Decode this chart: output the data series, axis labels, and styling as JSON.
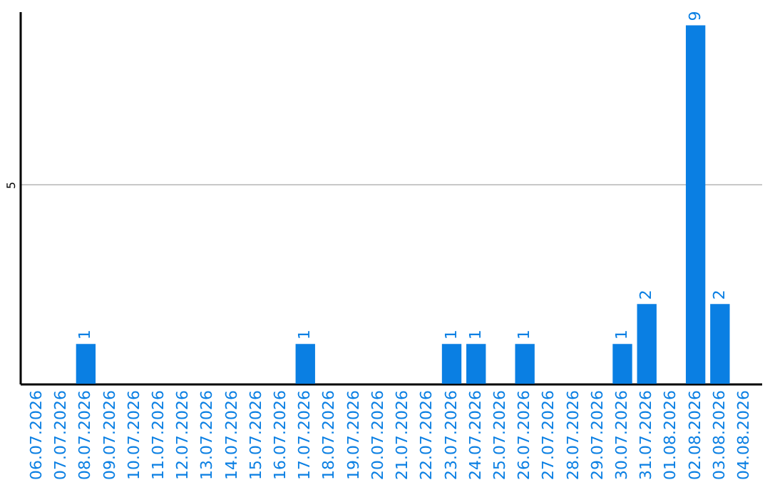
{
  "chart_data": {
    "type": "bar",
    "categories": [
      "06.07.2026",
      "07.07.2026",
      "08.07.2026",
      "09.07.2026",
      "10.07.2026",
      "11.07.2026",
      "12.07.2026",
      "13.07.2026",
      "14.07.2026",
      "15.07.2026",
      "16.07.2026",
      "17.07.2026",
      "18.07.2026",
      "19.07.2026",
      "20.07.2026",
      "21.07.2026",
      "22.07.2026",
      "23.07.2026",
      "24.07.2026",
      "25.07.2026",
      "26.07.2026",
      "27.07.2026",
      "28.07.2026",
      "29.07.2026",
      "30.07.2026",
      "31.07.2026",
      "01.08.2026",
      "02.08.2026",
      "03.08.2026",
      "04.08.2026"
    ],
    "values": [
      0,
      0,
      1,
      0,
      0,
      0,
      0,
      0,
      0,
      0,
      0,
      1,
      0,
      0,
      0,
      0,
      0,
      1,
      1,
      0,
      1,
      0,
      0,
      0,
      1,
      2,
      0,
      9,
      2,
      0
    ],
    "value_labels": [
      null,
      null,
      "1",
      null,
      null,
      null,
      null,
      null,
      null,
      null,
      null,
      "1",
      null,
      null,
      null,
      null,
      null,
      "1",
      "1",
      null,
      "1",
      null,
      null,
      null,
      "1",
      "2",
      null,
      "9",
      "2",
      null
    ],
    "color": "#0a7fe3",
    "ylim": [
      0,
      9.35
    ],
    "yticks": [
      5
    ],
    "grid": "y"
  }
}
